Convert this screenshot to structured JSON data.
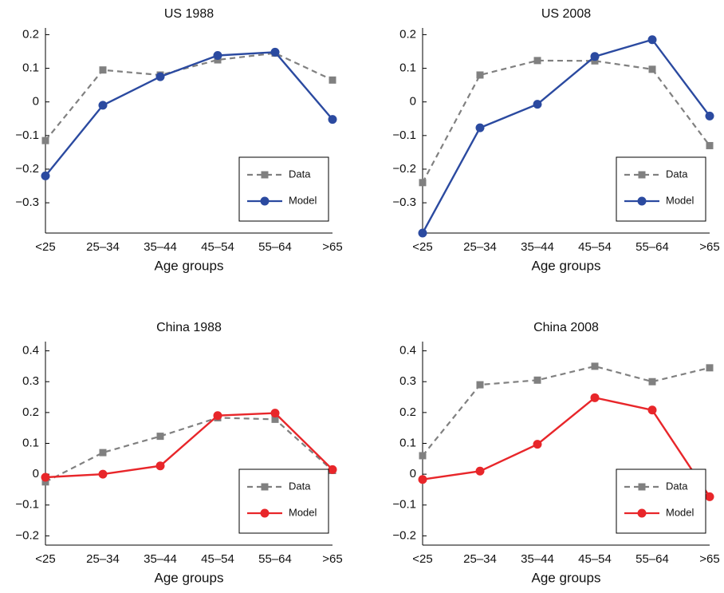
{
  "chart_data": [
    {
      "type": "line",
      "title": "US 1988",
      "xlabel": "Age groups",
      "categories": [
        "<25",
        "25–34",
        "35–44",
        "45–54",
        "55–64",
        ">65"
      ],
      "series": [
        {
          "name": "Data",
          "color": "#808080",
          "linestyle": "dashed",
          "marker": "square",
          "values": [
            -0.115,
            0.095,
            0.08,
            0.125,
            0.145,
            0.065
          ]
        },
        {
          "name": "Model",
          "color": "#2b4aa0",
          "linestyle": "solid",
          "marker": "circle",
          "values": [
            -0.22,
            -0.01,
            0.075,
            0.138,
            0.148,
            -0.052
          ]
        }
      ],
      "ylim": [
        -0.39,
        0.22
      ],
      "yticks": [
        {
          "value": -0.3,
          "label": "−0.3"
        },
        {
          "value": -0.2,
          "label": "−0.2"
        },
        {
          "value": -0.1,
          "label": "−0.1"
        },
        0,
        0.1,
        0.2
      ],
      "legend": "lower right"
    },
    {
      "type": "line",
      "title": "US 2008",
      "xlabel": "Age groups",
      "categories": [
        "<25",
        "25–34",
        "35–44",
        "45–54",
        "55–64",
        ">65"
      ],
      "series": [
        {
          "name": "Data",
          "color": "#808080",
          "linestyle": "dashed",
          "marker": "square",
          "values": [
            -0.24,
            0.08,
            0.123,
            0.122,
            0.097,
            -0.13
          ]
        },
        {
          "name": "Model",
          "color": "#2b4aa0",
          "linestyle": "solid",
          "marker": "circle",
          "values": [
            -0.39,
            -0.077,
            -0.007,
            0.135,
            0.185,
            -0.042
          ]
        }
      ],
      "ylim": [
        -0.39,
        0.22
      ],
      "yticks": [
        {
          "value": -0.3,
          "label": "−0.3"
        },
        {
          "value": -0.2,
          "label": "−0.2"
        },
        {
          "value": -0.1,
          "label": "−0.1"
        },
        0,
        0.1,
        0.2
      ],
      "legend": "lower right"
    },
    {
      "type": "line",
      "title": "China 1988",
      "xlabel": "Age groups",
      "categories": [
        "<25",
        "25–34",
        "35–44",
        "45–54",
        "55–64",
        ">65"
      ],
      "series": [
        {
          "name": "Data",
          "color": "#808080",
          "linestyle": "dashed",
          "marker": "square",
          "values": [
            -0.025,
            0.07,
            0.123,
            0.183,
            0.178,
            0.012
          ]
        },
        {
          "name": "Model",
          "color": "#e8262a",
          "linestyle": "solid",
          "marker": "circle",
          "values": [
            -0.01,
            0.0,
            0.027,
            0.19,
            0.198,
            0.015
          ]
        }
      ],
      "ylim": [
        -0.23,
        0.43
      ],
      "yticks": [
        {
          "value": -0.2,
          "label": "−0.2"
        },
        {
          "value": -0.1,
          "label": "−0.1"
        },
        0,
        0.1,
        0.2,
        0.3,
        0.4
      ],
      "legend": "lower right"
    },
    {
      "type": "line",
      "title": "China 2008",
      "xlabel": "Age groups",
      "categories": [
        "<25",
        "25–34",
        "35–44",
        "45–54",
        "55–64",
        ">65"
      ],
      "series": [
        {
          "name": "Data",
          "color": "#808080",
          "linestyle": "dashed",
          "marker": "square",
          "values": [
            0.06,
            0.29,
            0.305,
            0.35,
            0.3,
            0.345
          ]
        },
        {
          "name": "Model",
          "color": "#e8262a",
          "linestyle": "solid",
          "marker": "circle",
          "values": [
            -0.017,
            0.01,
            0.097,
            0.248,
            0.208,
            -0.073
          ]
        }
      ],
      "ylim": [
        -0.23,
        0.43
      ],
      "yticks": [
        {
          "value": -0.2,
          "label": "−0.2"
        },
        {
          "value": -0.1,
          "label": "−0.1"
        },
        0,
        0.1,
        0.2,
        0.3,
        0.4
      ],
      "legend": "lower right"
    }
  ]
}
